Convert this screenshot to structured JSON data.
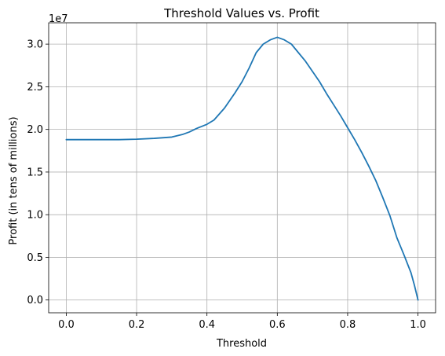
{
  "chart_data": {
    "type": "line",
    "title": "Threshold Values vs. Profit",
    "xlabel": "Threshold",
    "ylabel": "Profit (in tens of millions)",
    "y_offset_label": "1e7",
    "xlim": [
      -0.05,
      1.05
    ],
    "ylim": [
      -1500000,
      32500000
    ],
    "x_ticks": [
      0.0,
      0.2,
      0.4,
      0.6,
      0.8,
      1.0
    ],
    "x_tick_labels": [
      "0.0",
      "0.2",
      "0.4",
      "0.6",
      "0.8",
      "1.0"
    ],
    "y_ticks": [
      0,
      5000000,
      10000000,
      15000000,
      20000000,
      25000000,
      30000000
    ],
    "y_tick_labels": [
      "0.0",
      "0.5",
      "1.0",
      "1.5",
      "2.0",
      "2.5",
      "3.0"
    ],
    "grid": true,
    "series": [
      {
        "color": "#1f77b4",
        "x": [
          0.0,
          0.05,
          0.1,
          0.15,
          0.2,
          0.25,
          0.3,
          0.33,
          0.35,
          0.37,
          0.4,
          0.42,
          0.45,
          0.48,
          0.5,
          0.52,
          0.54,
          0.56,
          0.58,
          0.6,
          0.62,
          0.64,
          0.66,
          0.68,
          0.7,
          0.72,
          0.74,
          0.76,
          0.78,
          0.8,
          0.82,
          0.84,
          0.86,
          0.88,
          0.9,
          0.92,
          0.94,
          0.96,
          0.98,
          0.99,
          1.0
        ],
        "y": [
          18800000,
          18800000,
          18800000,
          18800000,
          18850000,
          18950000,
          19100000,
          19400000,
          19700000,
          20100000,
          20600000,
          21100000,
          22500000,
          24300000,
          25600000,
          27200000,
          29000000,
          30000000,
          30500000,
          30800000,
          30500000,
          30000000,
          29000000,
          28000000,
          26800000,
          25600000,
          24200000,
          22900000,
          21600000,
          20200000,
          18800000,
          17300000,
          15700000,
          14000000,
          12000000,
          9900000,
          7300000,
          5300000,
          3200000,
          1700000,
          0
        ]
      }
    ]
  }
}
